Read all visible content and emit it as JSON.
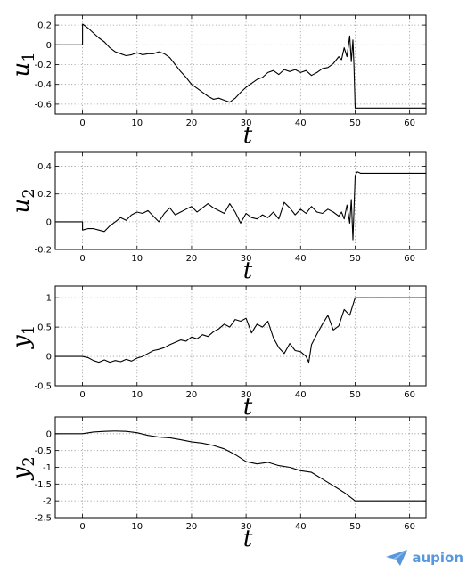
{
  "chart_data": [
    {
      "type": "line",
      "ylabel": "u",
      "ylabel_sub": "1",
      "xlabel": "t",
      "xlim": [
        -5,
        63
      ],
      "ylim": [
        -0.7,
        0.3
      ],
      "xticks": [
        0,
        10,
        20,
        30,
        40,
        50,
        60
      ],
      "yticks": [
        0.2,
        0,
        -0.2,
        -0.4,
        -0.6
      ],
      "yticklabels": [
        "0.2",
        "0",
        "-0.2",
        "-0.4",
        "-0.6"
      ],
      "grid": true,
      "series": [
        {
          "x": [
            -5,
            0,
            0,
            1,
            2,
            3,
            4,
            5,
            6,
            7,
            8,
            9,
            10,
            11,
            12,
            13,
            14,
            15,
            16,
            17,
            18,
            19,
            20,
            21,
            22,
            23,
            24,
            25,
            26,
            27,
            28,
            29,
            30,
            31,
            32,
            33,
            34,
            35,
            36,
            37,
            38,
            39,
            40,
            41,
            42,
            43,
            44,
            45,
            46,
            47,
            47.5,
            48,
            48.5,
            49,
            49.3,
            49.6,
            49.8,
            50,
            50,
            55,
            63
          ],
          "y": [
            0,
            0,
            0.21,
            0.17,
            0.12,
            0.07,
            0.03,
            -0.03,
            -0.07,
            -0.09,
            -0.11,
            -0.1,
            -0.08,
            -0.1,
            -0.09,
            -0.09,
            -0.07,
            -0.09,
            -0.13,
            -0.2,
            -0.27,
            -0.33,
            -0.4,
            -0.44,
            -0.48,
            -0.52,
            -0.55,
            -0.54,
            -0.56,
            -0.58,
            -0.54,
            -0.48,
            -0.43,
            -0.39,
            -0.35,
            -0.33,
            -0.28,
            -0.26,
            -0.3,
            -0.25,
            -0.27,
            -0.25,
            -0.28,
            -0.26,
            -0.31,
            -0.28,
            -0.24,
            -0.23,
            -0.19,
            -0.12,
            -0.15,
            -0.03,
            -0.12,
            0.09,
            -0.17,
            0.05,
            -0.22,
            -0.64,
            -0.64,
            -0.64,
            -0.64
          ]
        }
      ]
    },
    {
      "type": "line",
      "ylabel": "u",
      "ylabel_sub": "2",
      "xlabel": "t",
      "xlim": [
        -5,
        63
      ],
      "ylim": [
        -0.2,
        0.5
      ],
      "xticks": [
        0,
        10,
        20,
        30,
        40,
        50,
        60
      ],
      "yticks": [
        0.4,
        0.2,
        0,
        -0.2
      ],
      "yticklabels": [
        "0.4",
        "0.2",
        "0",
        "-0.2"
      ],
      "grid": true,
      "series": [
        {
          "x": [
            -5,
            0,
            0,
            1,
            2,
            3,
            4,
            5,
            6,
            7,
            8,
            9,
            10,
            11,
            12,
            13,
            14,
            15,
            16,
            17,
            18,
            19,
            20,
            21,
            22,
            23,
            24,
            25,
            26,
            27,
            28,
            29,
            30,
            31,
            32,
            33,
            34,
            35,
            36,
            37,
            38,
            39,
            40,
            41,
            42,
            43,
            44,
            45,
            46,
            47,
            47.5,
            48,
            48.5,
            49,
            49.3,
            49.6,
            50,
            50.2,
            50.4,
            51,
            55,
            63
          ],
          "y": [
            0,
            0,
            -0.06,
            -0.05,
            -0.05,
            -0.06,
            -0.07,
            -0.03,
            0.0,
            0.03,
            0.01,
            0.05,
            0.07,
            0.06,
            0.08,
            0.04,
            0.0,
            0.06,
            0.1,
            0.05,
            0.07,
            0.09,
            0.11,
            0.07,
            0.1,
            0.13,
            0.1,
            0.08,
            0.06,
            0.13,
            0.07,
            -0.01,
            0.06,
            0.03,
            0.02,
            0.05,
            0.03,
            0.07,
            0.02,
            0.14,
            0.1,
            0.05,
            0.09,
            0.06,
            0.11,
            0.07,
            0.06,
            0.09,
            0.07,
            0.04,
            0.07,
            0.02,
            0.12,
            -0.01,
            0.16,
            -0.13,
            0.33,
            0.35,
            0.36,
            0.35,
            0.35,
            0.35
          ]
        }
      ]
    },
    {
      "type": "line",
      "ylabel": "y",
      "ylabel_sub": "1",
      "xlabel": "t",
      "xlim": [
        -5,
        63
      ],
      "ylim": [
        -0.5,
        1.2
      ],
      "xticks": [
        0,
        10,
        20,
        30,
        40,
        50,
        60
      ],
      "yticks": [
        1,
        0.5,
        0,
        -0.5
      ],
      "yticklabels": [
        "1",
        "0.5",
        "0",
        "-0.5"
      ],
      "grid": true,
      "series": [
        {
          "x": [
            -5,
            0,
            1,
            2,
            3,
            4,
            5,
            6,
            7,
            8,
            9,
            10,
            11,
            12,
            13,
            14,
            15,
            16,
            17,
            18,
            19,
            20,
            21,
            22,
            23,
            24,
            25,
            26,
            27,
            28,
            29,
            30,
            31,
            32,
            33,
            34,
            35,
            36,
            37,
            38,
            39,
            40,
            41,
            41.5,
            42,
            43,
            44,
            45,
            46,
            47,
            48,
            49,
            50,
            55,
            63
          ],
          "y": [
            0,
            0,
            -0.02,
            -0.07,
            -0.1,
            -0.06,
            -0.1,
            -0.07,
            -0.09,
            -0.05,
            -0.08,
            -0.03,
            0.0,
            0.05,
            0.1,
            0.12,
            0.15,
            0.2,
            0.24,
            0.28,
            0.26,
            0.33,
            0.3,
            0.37,
            0.34,
            0.42,
            0.47,
            0.55,
            0.5,
            0.63,
            0.6,
            0.65,
            0.4,
            0.55,
            0.5,
            0.6,
            0.32,
            0.15,
            0.05,
            0.22,
            0.1,
            0.08,
            0.0,
            -0.1,
            0.2,
            0.38,
            0.55,
            0.7,
            0.45,
            0.52,
            0.8,
            0.7,
            1.0,
            1.0,
            1.0
          ]
        }
      ]
    },
    {
      "type": "line",
      "ylabel": "y",
      "ylabel_sub": "2",
      "xlabel": "t",
      "xlim": [
        -5,
        63
      ],
      "ylim": [
        -2.5,
        0.5
      ],
      "xticks": [
        0,
        10,
        20,
        30,
        40,
        50,
        60
      ],
      "yticks": [
        0,
        -0.5,
        -1,
        -1.5,
        -2,
        -2.5
      ],
      "yticklabels": [
        "0",
        "-0.5",
        "-1",
        "-1.5",
        "-2",
        "-2.5"
      ],
      "grid": true,
      "series": [
        {
          "x": [
            -5,
            0,
            2,
            4,
            6,
            8,
            10,
            12,
            14,
            16,
            18,
            20,
            22,
            24,
            26,
            28,
            30,
            32,
            34,
            36,
            38,
            40,
            42,
            44,
            46,
            48,
            50,
            55,
            63
          ],
          "y": [
            0,
            0,
            0.05,
            0.07,
            0.08,
            0.07,
            0.03,
            -0.05,
            -0.1,
            -0.12,
            -0.18,
            -0.24,
            -0.28,
            -0.35,
            -0.45,
            -0.62,
            -0.83,
            -0.9,
            -0.85,
            -0.95,
            -1.0,
            -1.1,
            -1.15,
            -1.35,
            -1.55,
            -1.75,
            -2.0,
            -2.0,
            -2.0
          ]
        }
      ]
    }
  ],
  "watermark": {
    "text": "aupion",
    "icon": "paper-plane-logo"
  }
}
